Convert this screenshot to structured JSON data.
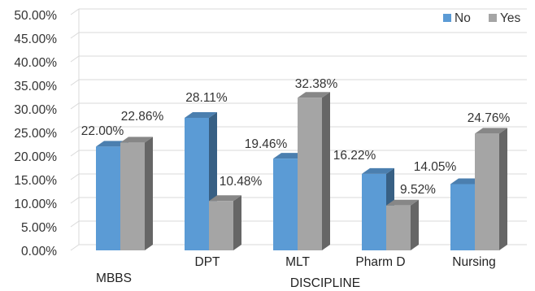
{
  "chart_data": {
    "type": "bar",
    "style": "3d-clustered-column",
    "categories": [
      "MBBS",
      "DPT",
      "MLT",
      "Pharm D",
      "Nursing"
    ],
    "series": [
      {
        "name": "No",
        "values": [
          22.0,
          28.11,
          19.46,
          16.22,
          14.05
        ],
        "color": "#5b9bd5"
      },
      {
        "name": "Yes",
        "values": [
          22.86,
          10.48,
          32.38,
          9.52,
          24.76
        ],
        "color": "#a5a5a5"
      }
    ],
    "data_labels": {
      "No": [
        "22.00%",
        "28.11%",
        "19.46%",
        "16.22%",
        "14.05%"
      ],
      "Yes": [
        "22.86%",
        "10.48%",
        "32.38%",
        "9.52%",
        "24.76%"
      ]
    },
    "ylim": [
      0,
      50
    ],
    "yticks": [
      "0.00%",
      "5.00%",
      "10.00%",
      "15.00%",
      "20.00%",
      "25.00%",
      "30.00%",
      "35.00%",
      "40.00%",
      "45.00%",
      "50.00%"
    ],
    "xlabel": "DISCIPLINE",
    "ylabel": "",
    "legend_position": "top-right",
    "grid": true
  }
}
